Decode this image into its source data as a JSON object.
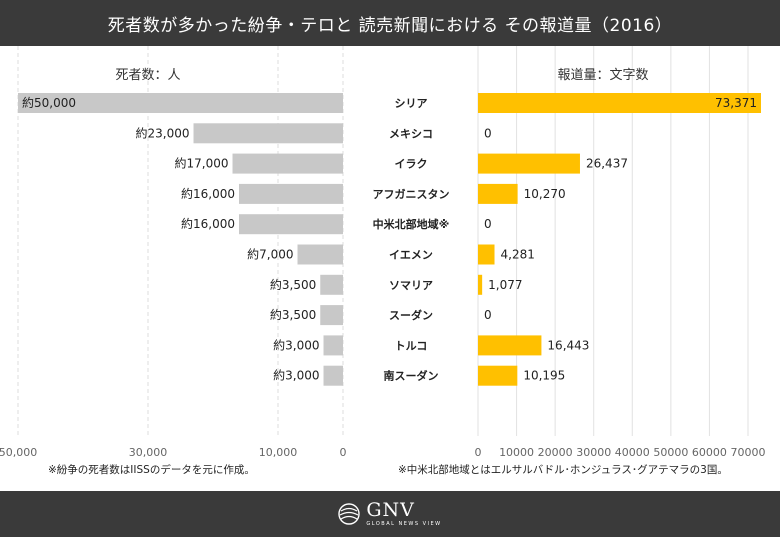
{
  "title": "死者数が多かった紛争・テロと 読売新聞における その報道量（2016）",
  "footer": {
    "logo_name": "GNV",
    "logo_sub": "GLOBAL NEWS VIEW"
  },
  "chart_data": {
    "type": "bar",
    "categories": [
      "シリア",
      "メキシコ",
      "イラク",
      "アフガニスタン",
      "中米北部地域※",
      "イエメン",
      "ソマリア",
      "スーダン",
      "トルコ",
      "南スーダン"
    ],
    "left": {
      "title": "死者数：人",
      "values": [
        50000,
        23000,
        17000,
        16000,
        16000,
        7000,
        3500,
        3500,
        3000,
        3000
      ],
      "labels": [
        "約50,000",
        "約23,000",
        "約17,000",
        "約16,000",
        "約16,000",
        "約7,000",
        "約3,500",
        "約3,500",
        "約3,000",
        "約3,000"
      ],
      "ticks": [
        50000,
        30000,
        10000,
        0
      ],
      "tick_labels": [
        "50,000",
        "30,000",
        "10,000",
        "0"
      ],
      "xlim": [
        0,
        50000
      ],
      "color": "#c8c8c8",
      "note": "※紛争の死者数はIISSのデータを元に作成。"
    },
    "right": {
      "title": "報道量：文字数",
      "values": [
        73371,
        0,
        26437,
        10270,
        0,
        4281,
        1077,
        0,
        16443,
        10195
      ],
      "labels": [
        "73,371",
        "0",
        "26,437",
        "10,270",
        "0",
        "4,281",
        "1,077",
        "0",
        "16,443",
        "10,195"
      ],
      "ticks": [
        0,
        10000,
        20000,
        30000,
        40000,
        50000,
        60000,
        70000
      ],
      "tick_labels": [
        "0",
        "10000",
        "20000",
        "30000",
        "40000",
        "50000",
        "60000",
        "70000"
      ],
      "xlim": [
        0,
        73371
      ],
      "color": "#ffc000",
      "note": "※中米北部地域とはエルサルバドル･ホンジュラス･グアテマラの3国。"
    },
    "grid": "vertical"
  }
}
